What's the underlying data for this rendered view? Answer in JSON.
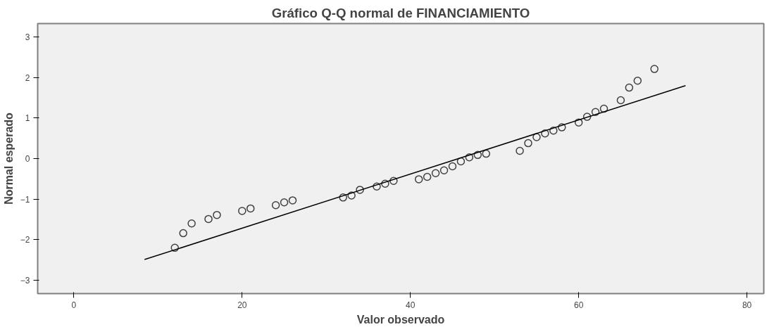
{
  "chart_data": {
    "type": "scatter",
    "title": "Gráfico Q-Q normal de FINANCIAMIENTO",
    "xlabel": "Valor observado",
    "ylabel": "Normal esperado",
    "xlim": [
      -4.3,
      82
    ],
    "ylim": [
      -3.33,
      3.33
    ],
    "xticks": [
      0,
      20,
      40,
      60,
      80
    ],
    "yticks": [
      -3,
      -2,
      -1,
      0,
      1,
      2,
      3
    ],
    "grid": false,
    "marker": "circle",
    "series": [
      {
        "color": "#404040",
        "x": [
          12,
          13,
          14,
          16,
          17,
          20,
          21,
          24,
          25,
          26,
          32,
          33,
          34,
          36,
          37,
          38,
          41,
          42,
          43,
          44,
          45,
          46,
          47,
          48,
          49,
          53,
          54,
          55,
          56,
          57,
          58,
          60,
          61,
          62,
          63,
          65,
          66,
          67,
          69
        ],
        "values": [
          -2.2,
          -1.84,
          -1.6,
          -1.49,
          -1.39,
          -1.29,
          -1.23,
          -1.15,
          -1.08,
          -1.03,
          -0.96,
          -0.91,
          -0.77,
          -0.69,
          -0.62,
          -0.55,
          -0.51,
          -0.45,
          -0.36,
          -0.29,
          -0.19,
          -0.07,
          0.03,
          0.09,
          0.12,
          0.19,
          0.38,
          0.53,
          0.62,
          0.69,
          0.77,
          0.89,
          1.03,
          1.15,
          1.23,
          1.44,
          1.75,
          1.92,
          2.21
        ]
      },
      {
        "type": "line",
        "color": "#000000",
        "x": [
          8.4,
          72.7
        ],
        "values": [
          -2.49,
          1.8
        ],
        "marker": "none",
        "line_style": "solid"
      }
    ]
  }
}
